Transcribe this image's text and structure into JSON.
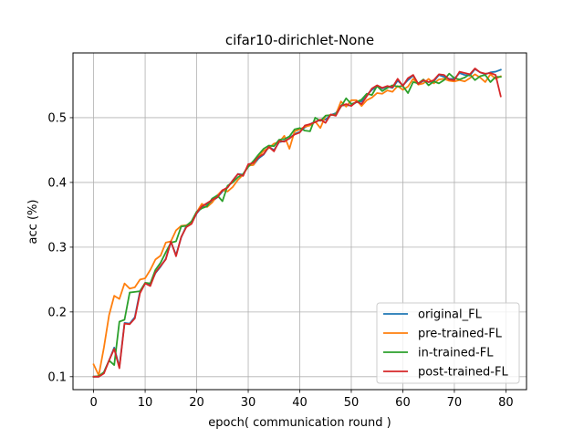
{
  "chart_data": {
    "type": "line",
    "title": "cifar10-dirichlet-None",
    "xlabel": "epoch( communication round )",
    "ylabel": "acc (%)",
    "xlim": [
      -4,
      84
    ],
    "ylim": [
      0.08,
      0.6
    ],
    "xticks": [
      0,
      10,
      20,
      30,
      40,
      50,
      60,
      70,
      80
    ],
    "yticks": [
      0.1,
      0.2,
      0.3,
      0.4,
      0.5
    ],
    "xtick_labels": [
      "0",
      "10",
      "20",
      "30",
      "40",
      "50",
      "60",
      "70",
      "80"
    ],
    "ytick_labels": [
      "0.1",
      "0.2",
      "0.3",
      "0.4",
      "0.5"
    ],
    "grid": true,
    "legend_position": "lower right",
    "x": [
      0,
      1,
      2,
      3,
      4,
      5,
      6,
      7,
      8,
      9,
      10,
      11,
      12,
      13,
      14,
      15,
      16,
      17,
      18,
      19,
      20,
      21,
      22,
      23,
      24,
      25,
      26,
      27,
      28,
      29,
      30,
      31,
      32,
      33,
      34,
      35,
      36,
      37,
      38,
      39,
      40,
      41,
      42,
      43,
      44,
      45,
      46,
      47,
      48,
      49,
      50,
      51,
      52,
      53,
      54,
      55,
      56,
      57,
      58,
      59,
      60,
      61,
      62,
      63,
      64,
      65,
      66,
      67,
      68,
      69,
      70,
      71,
      72,
      73,
      74,
      75,
      76,
      77,
      78,
      79
    ],
    "series": [
      {
        "name": "original_FL",
        "color": "#1f77b4",
        "values": [
          0.1,
          0.1,
          0.107,
          0.125,
          0.145,
          0.115,
          0.183,
          0.182,
          0.192,
          0.232,
          0.244,
          0.242,
          0.26,
          0.27,
          0.282,
          0.308,
          0.288,
          0.315,
          0.333,
          0.337,
          0.352,
          0.362,
          0.366,
          0.371,
          0.377,
          0.386,
          0.393,
          0.403,
          0.413,
          0.412,
          0.426,
          0.427,
          0.437,
          0.443,
          0.455,
          0.45,
          0.462,
          0.464,
          0.468,
          0.475,
          0.478,
          0.485,
          0.49,
          0.494,
          0.496,
          0.497,
          0.504,
          0.507,
          0.519,
          0.519,
          0.519,
          0.524,
          0.525,
          0.535,
          0.543,
          0.548,
          0.545,
          0.548,
          0.546,
          0.557,
          0.55,
          0.558,
          0.565,
          0.552,
          0.557,
          0.555,
          0.556,
          0.566,
          0.563,
          0.56,
          0.56,
          0.569,
          0.566,
          0.565,
          0.575,
          0.57,
          0.567,
          0.57,
          0.571,
          0.574
        ]
      },
      {
        "name": "pre-trained-FL",
        "color": "#ff7f0e",
        "values": [
          0.119,
          0.102,
          0.145,
          0.195,
          0.225,
          0.22,
          0.244,
          0.236,
          0.238,
          0.25,
          0.252,
          0.265,
          0.281,
          0.287,
          0.307,
          0.309,
          0.326,
          0.333,
          0.334,
          0.338,
          0.354,
          0.367,
          0.362,
          0.369,
          0.38,
          0.388,
          0.386,
          0.393,
          0.404,
          0.412,
          0.426,
          0.427,
          0.44,
          0.449,
          0.453,
          0.46,
          0.462,
          0.472,
          0.452,
          0.479,
          0.482,
          0.486,
          0.488,
          0.494,
          0.484,
          0.503,
          0.504,
          0.505,
          0.525,
          0.517,
          0.527,
          0.527,
          0.518,
          0.527,
          0.531,
          0.538,
          0.537,
          0.542,
          0.54,
          0.549,
          0.543,
          0.548,
          0.56,
          0.551,
          0.553,
          0.56,
          0.553,
          0.559,
          0.56,
          0.557,
          0.556,
          0.558,
          0.556,
          0.561,
          0.567,
          0.562,
          0.555,
          0.567,
          0.56,
          0.564
        ]
      },
      {
        "name": "in-trained-FL",
        "color": "#2ca02c",
        "values": [
          0.1,
          0.101,
          0.107,
          0.125,
          0.118,
          0.185,
          0.188,
          0.23,
          0.231,
          0.232,
          0.245,
          0.244,
          0.265,
          0.276,
          0.292,
          0.307,
          0.309,
          0.332,
          0.333,
          0.34,
          0.355,
          0.36,
          0.363,
          0.375,
          0.38,
          0.371,
          0.395,
          0.4,
          0.408,
          0.413,
          0.424,
          0.433,
          0.443,
          0.452,
          0.457,
          0.456,
          0.466,
          0.467,
          0.471,
          0.482,
          0.484,
          0.48,
          0.479,
          0.5,
          0.495,
          0.503,
          0.504,
          0.505,
          0.517,
          0.53,
          0.521,
          0.524,
          0.528,
          0.537,
          0.535,
          0.549,
          0.541,
          0.546,
          0.55,
          0.548,
          0.549,
          0.538,
          0.555,
          0.553,
          0.559,
          0.55,
          0.556,
          0.553,
          0.558,
          0.568,
          0.561,
          0.559,
          0.562,
          0.567,
          0.558,
          0.564,
          0.566,
          0.555,
          0.563,
          0.563
        ]
      },
      {
        "name": "post-trained-FL",
        "color": "#d62728",
        "values": [
          0.1,
          0.1,
          0.105,
          0.125,
          0.143,
          0.113,
          0.182,
          0.181,
          0.19,
          0.229,
          0.244,
          0.24,
          0.261,
          0.271,
          0.281,
          0.309,
          0.286,
          0.316,
          0.331,
          0.336,
          0.353,
          0.363,
          0.368,
          0.373,
          0.377,
          0.388,
          0.392,
          0.403,
          0.413,
          0.41,
          0.428,
          0.43,
          0.439,
          0.444,
          0.455,
          0.448,
          0.464,
          0.463,
          0.468,
          0.474,
          0.477,
          0.488,
          0.49,
          0.493,
          0.497,
          0.492,
          0.505,
          0.503,
          0.518,
          0.521,
          0.518,
          0.525,
          0.521,
          0.533,
          0.545,
          0.55,
          0.546,
          0.549,
          0.547,
          0.56,
          0.549,
          0.561,
          0.566,
          0.552,
          0.558,
          0.555,
          0.558,
          0.567,
          0.566,
          0.559,
          0.558,
          0.571,
          0.569,
          0.567,
          0.576,
          0.57,
          0.568,
          0.569,
          0.566,
          0.533
        ]
      }
    ]
  }
}
